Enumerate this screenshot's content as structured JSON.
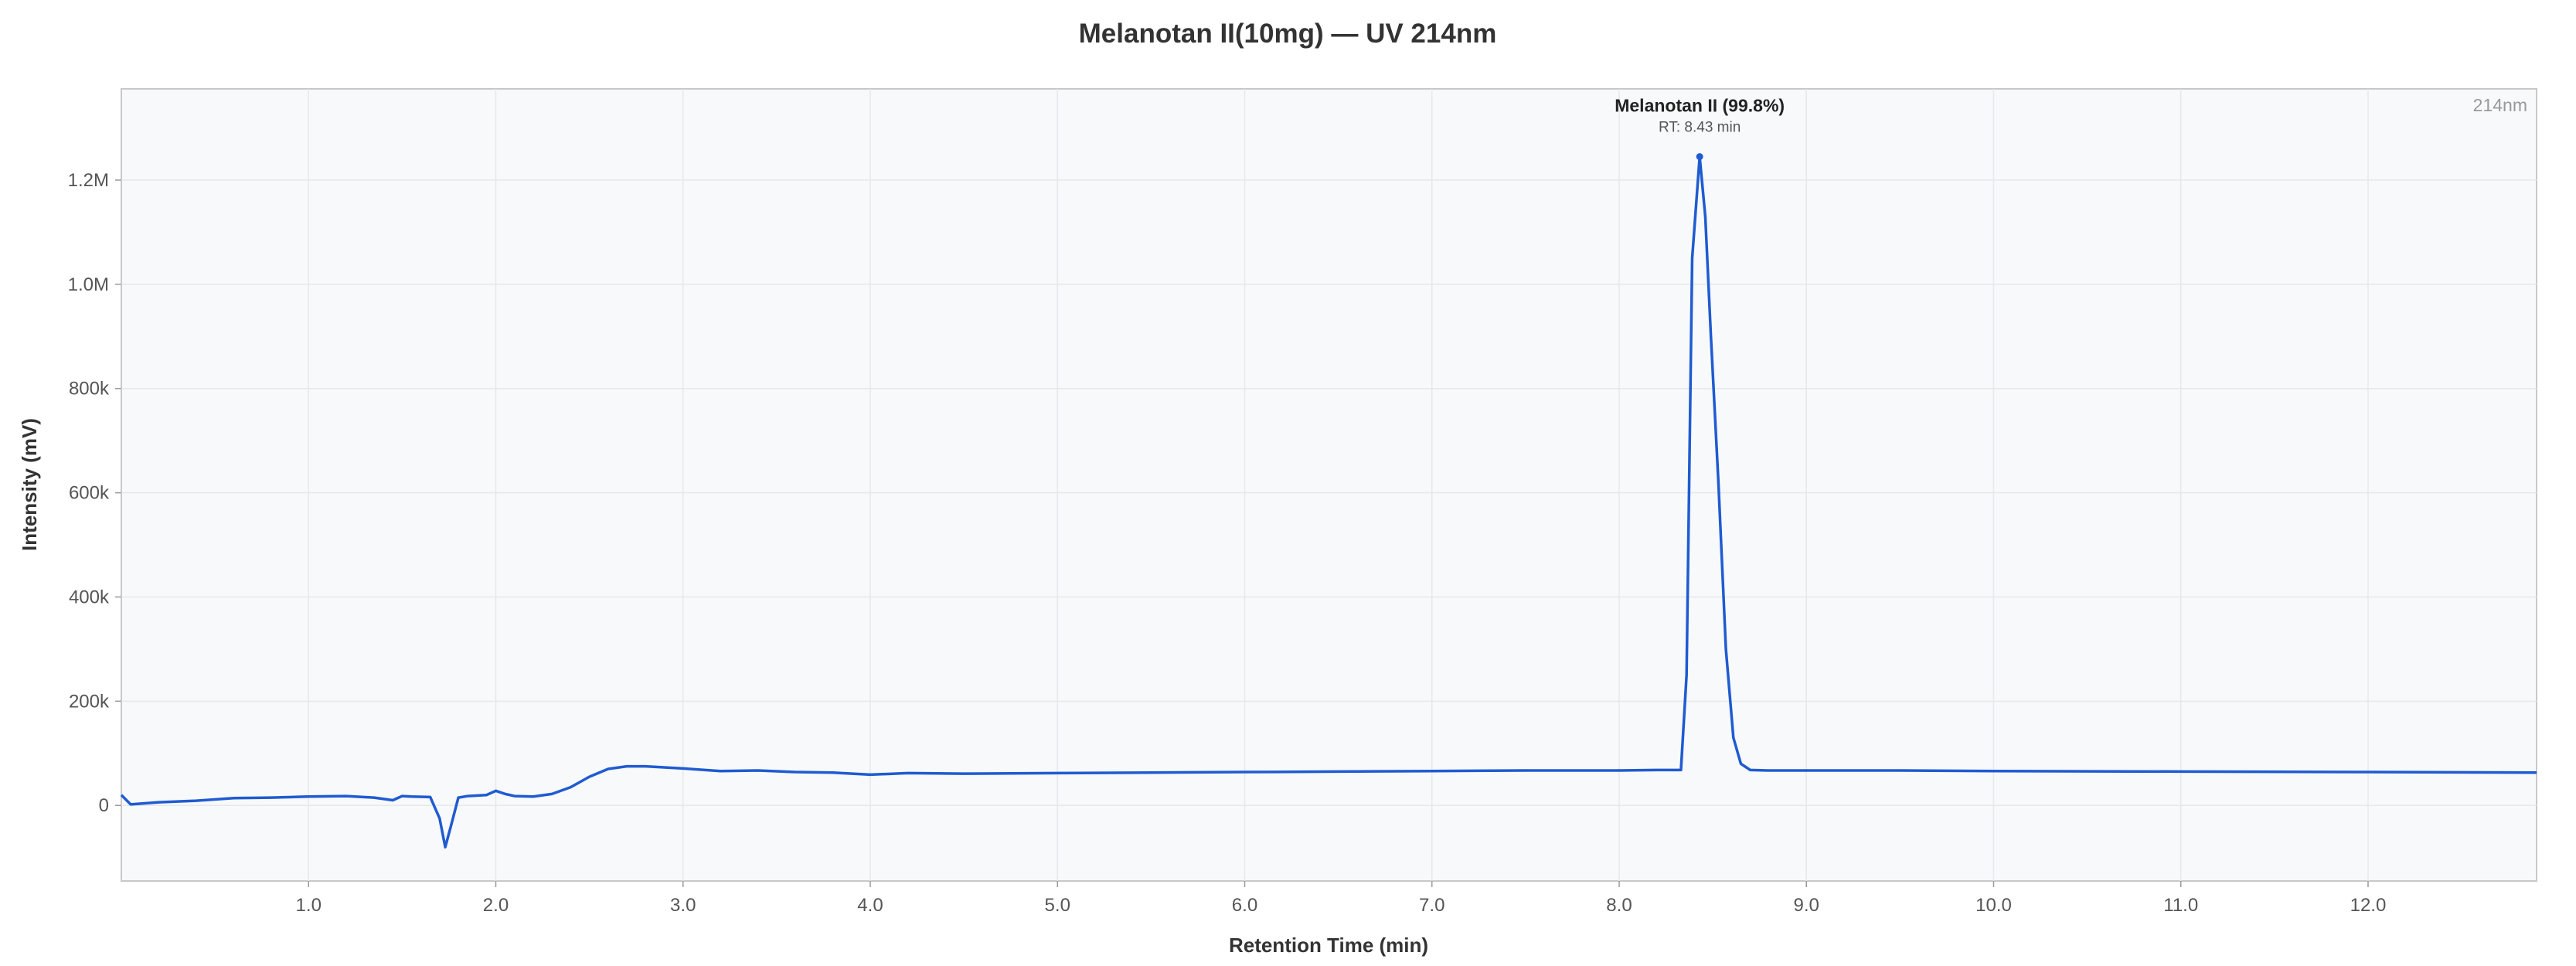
{
  "chart_data": {
    "type": "line",
    "title": "Melanotan II(10mg) — UV 214nm",
    "xlabel": "Retention Time (min)",
    "ylabel": "Intensity (mV)",
    "corner_label": "214nm",
    "xlim": [
      0.0,
      12.9
    ],
    "ylim": [
      -145000,
      1375000
    ],
    "x_ticks": [
      1.0,
      2.0,
      3.0,
      4.0,
      5.0,
      6.0,
      7.0,
      8.0,
      9.0,
      10.0,
      11.0,
      12.0
    ],
    "x_tick_labels": [
      "1.0",
      "2.0",
      "3.0",
      "4.0",
      "5.0",
      "6.0",
      "7.0",
      "8.0",
      "9.0",
      "10.0",
      "11.0",
      "12.0"
    ],
    "y_ticks": [
      0,
      200000,
      400000,
      600000,
      800000,
      1000000,
      1200000
    ],
    "y_tick_labels": [
      "0",
      "200k",
      "400k",
      "600k",
      "800k",
      "1.0M",
      "1.2M"
    ],
    "grid": true,
    "colors": {
      "line": "#1f5bd1",
      "plot_bg": "#f8f9fb",
      "grid": "#e6e8ec",
      "frame": "#c8c8c8"
    },
    "series": [
      {
        "x": [
          0.0,
          0.05,
          0.2,
          0.4,
          0.6,
          0.8,
          1.0,
          1.2,
          1.35,
          1.45,
          1.5,
          1.55,
          1.65,
          1.7,
          1.73,
          1.76,
          1.8,
          1.85,
          1.95,
          2.0,
          2.05,
          2.1,
          2.2,
          2.3,
          2.4,
          2.5,
          2.6,
          2.7,
          2.8,
          2.9,
          3.0,
          3.2,
          3.4,
          3.6,
          3.8,
          4.0,
          4.2,
          4.5,
          5.0,
          5.5,
          6.0,
          6.5,
          7.0,
          7.5,
          8.0,
          8.2,
          8.33,
          8.36,
          8.39,
          8.43,
          8.46,
          8.49,
          8.53,
          8.57,
          8.61,
          8.65,
          8.7,
          8.8,
          9.0,
          9.5,
          10.0,
          11.0,
          12.0,
          12.9
        ],
        "y": [
          20000,
          2000,
          6000,
          9000,
          14000,
          15000,
          17000,
          18000,
          15000,
          10000,
          18000,
          17000,
          16000,
          -25000,
          -80000,
          -40000,
          15000,
          18000,
          20000,
          28000,
          22000,
          18000,
          17000,
          22000,
          35000,
          55000,
          70000,
          75000,
          75000,
          73000,
          71000,
          66000,
          67000,
          64000,
          63000,
          59000,
          62000,
          61000,
          62000,
          63000,
          64000,
          65000,
          66000,
          67000,
          67000,
          68000,
          68000,
          250000,
          1050000,
          1245000,
          1130000,
          900000,
          620000,
          300000,
          130000,
          80000,
          68000,
          67000,
          67000,
          67000,
          66000,
          65000,
          64000,
          63000
        ]
      }
    ],
    "annotations": [
      {
        "x": 8.43,
        "y": 1245000,
        "label": "Melanotan II (99.8%)",
        "sublabel": "RT: 8.43 min"
      }
    ]
  }
}
